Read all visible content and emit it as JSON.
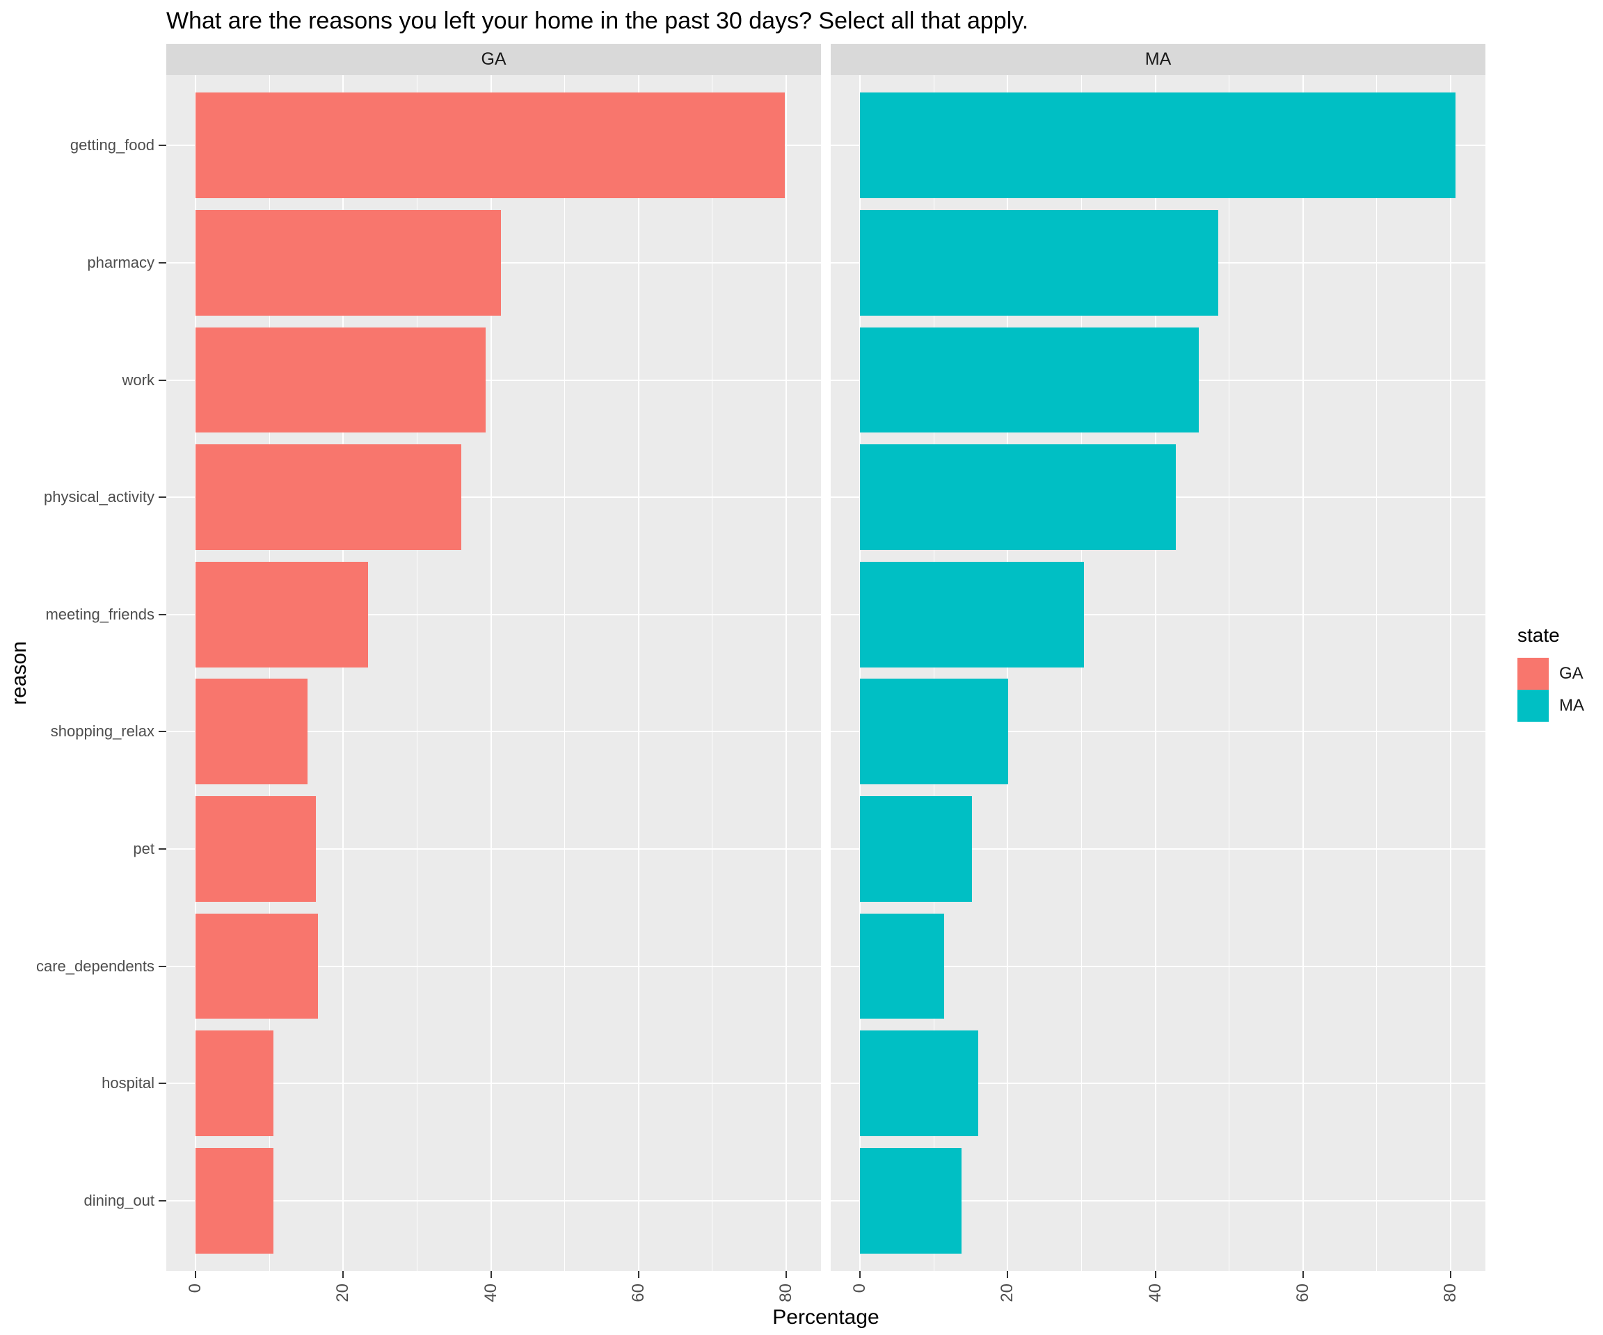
{
  "title": "What are the reasons you left your home in the past 30 days? Select all that apply.",
  "chart_data": {
    "type": "bar",
    "orientation": "horizontal",
    "title": "What are the reasons you left your home in the past 30 days? Select all that apply.",
    "facet_by": "state",
    "facet_labels": [
      "GA",
      "MA"
    ],
    "categories": [
      "getting_food",
      "pharmacy",
      "work",
      "physical_activity",
      "meeting_friends",
      "shopping_relax",
      "pet",
      "care_dependents",
      "hospital",
      "dining_out"
    ],
    "categories_order": "top-to-bottom",
    "series": [
      {
        "name": "GA",
        "color": "#F8766D",
        "values": [
          79.8,
          41.4,
          39.3,
          36.0,
          23.4,
          15.2,
          16.3,
          16.6,
          10.6,
          10.6
        ]
      },
      {
        "name": "MA",
        "color": "#00BFC4",
        "values": [
          80.7,
          48.5,
          45.9,
          42.8,
          30.3,
          20.1,
          15.2,
          11.4,
          16.0,
          13.8
        ]
      }
    ],
    "xlabel": "Percentage",
    "ylabel": "reason",
    "x_major_ticks": [
      0,
      20,
      40,
      60,
      80
    ],
    "x_minor_gridlines": [
      10,
      30,
      50,
      70
    ],
    "xlim": [
      -4,
      84.7
    ],
    "grid": true,
    "bar_width_fraction": 0.9,
    "panel_background": "#EBEBEB",
    "strip_background": "#D9D9D9",
    "gridline_color": "#FFFFFF",
    "axis_text_color": "#4D4D4D",
    "tick_mark_color": "#333333",
    "legend": {
      "title": "state",
      "position": "right",
      "entries": [
        {
          "label": "GA",
          "color": "#F8766D"
        },
        {
          "label": "MA",
          "color": "#00BFC4"
        }
      ]
    }
  }
}
